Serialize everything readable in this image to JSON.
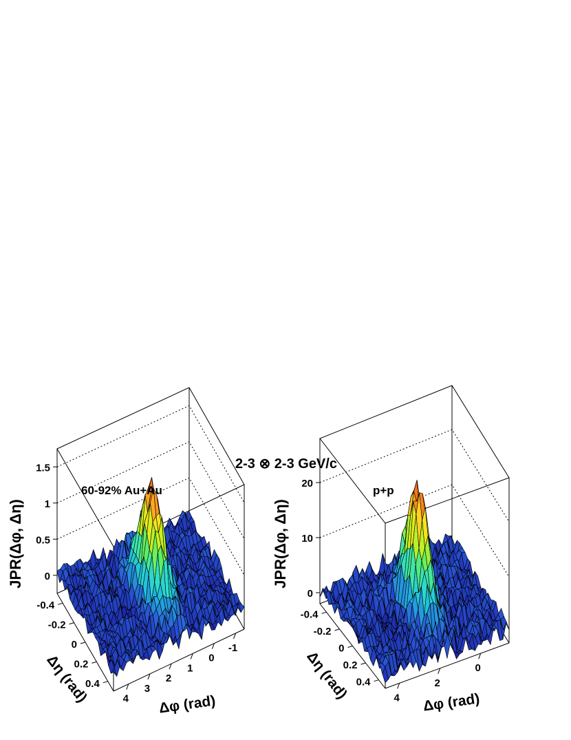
{
  "figure_title": "2-3 ⊗ 2-3 GeV/c",
  "chart_data": [
    {
      "type": "surface",
      "panel_label": "60-92% Au+Au",
      "zlabel": "JPR(Δφ, Δη)",
      "xlabel": "Δφ (rad)",
      "ylabel": "Δη (rad)",
      "x_ticks": [
        "4",
        "3",
        "2",
        "1",
        "0",
        "-1"
      ],
      "x_tick_values": [
        4,
        3,
        2,
        1,
        0,
        -1
      ],
      "xlim": [
        4.7,
        -1.4
      ],
      "y_ticks": [
        "-0.4",
        "-0.2",
        "0",
        "0.2",
        "0.4"
      ],
      "y_tick_values": [
        -0.4,
        -0.2,
        0,
        0.2,
        0.4
      ],
      "ylim": [
        -0.5,
        0.5
      ],
      "z_ticks": [
        "0",
        "0.5",
        "1",
        "1.5"
      ],
      "z_tick_values": [
        0,
        0.5,
        1,
        1.5
      ],
      "zlim": [
        -0.25,
        1.75
      ],
      "peak": {
        "dphi": 1.6,
        "deta": 0.0,
        "height": 1.5,
        "width_phi": 0.35,
        "width_eta": 0.17
      },
      "baseline": 0.02,
      "noise": 0.1,
      "colormap": [
        "#1a1aa0",
        "#2a5cd8",
        "#20b8e0",
        "#30e0c8",
        "#60f060",
        "#c8f020",
        "#ffe020",
        "#ff8020",
        "#e02010"
      ]
    },
    {
      "type": "surface",
      "panel_label": "p+p",
      "zlabel": "JPR(Δφ, Δη)",
      "xlabel": "Δφ (rad)",
      "ylabel": "Δη (rad)",
      "x_ticks": [
        "4",
        "2",
        "0"
      ],
      "x_tick_values": [
        4,
        2,
        0
      ],
      "xlim": [
        4.7,
        -1.4
      ],
      "y_ticks": [
        "-0.4",
        "-0.2",
        "0",
        "0.2",
        "0.4"
      ],
      "y_tick_values": [
        -0.4,
        -0.2,
        0,
        0.2,
        0.4
      ],
      "ylim": [
        -0.5,
        0.5
      ],
      "z_ticks": [
        "0",
        "10",
        "20"
      ],
      "z_tick_values": [
        0,
        10,
        20
      ],
      "zlim": [
        -2,
        28
      ],
      "peak": {
        "dphi": 1.6,
        "deta": 0.0,
        "height": 22,
        "width_phi": 0.32,
        "width_eta": 0.15
      },
      "baseline": 0.5,
      "noise": 1.6,
      "colormap": [
        "#1a1aa0",
        "#2a5cd8",
        "#20b8e0",
        "#30e0c8",
        "#60f060",
        "#c8f020",
        "#ffe020",
        "#ff8020",
        "#e02010"
      ]
    }
  ]
}
